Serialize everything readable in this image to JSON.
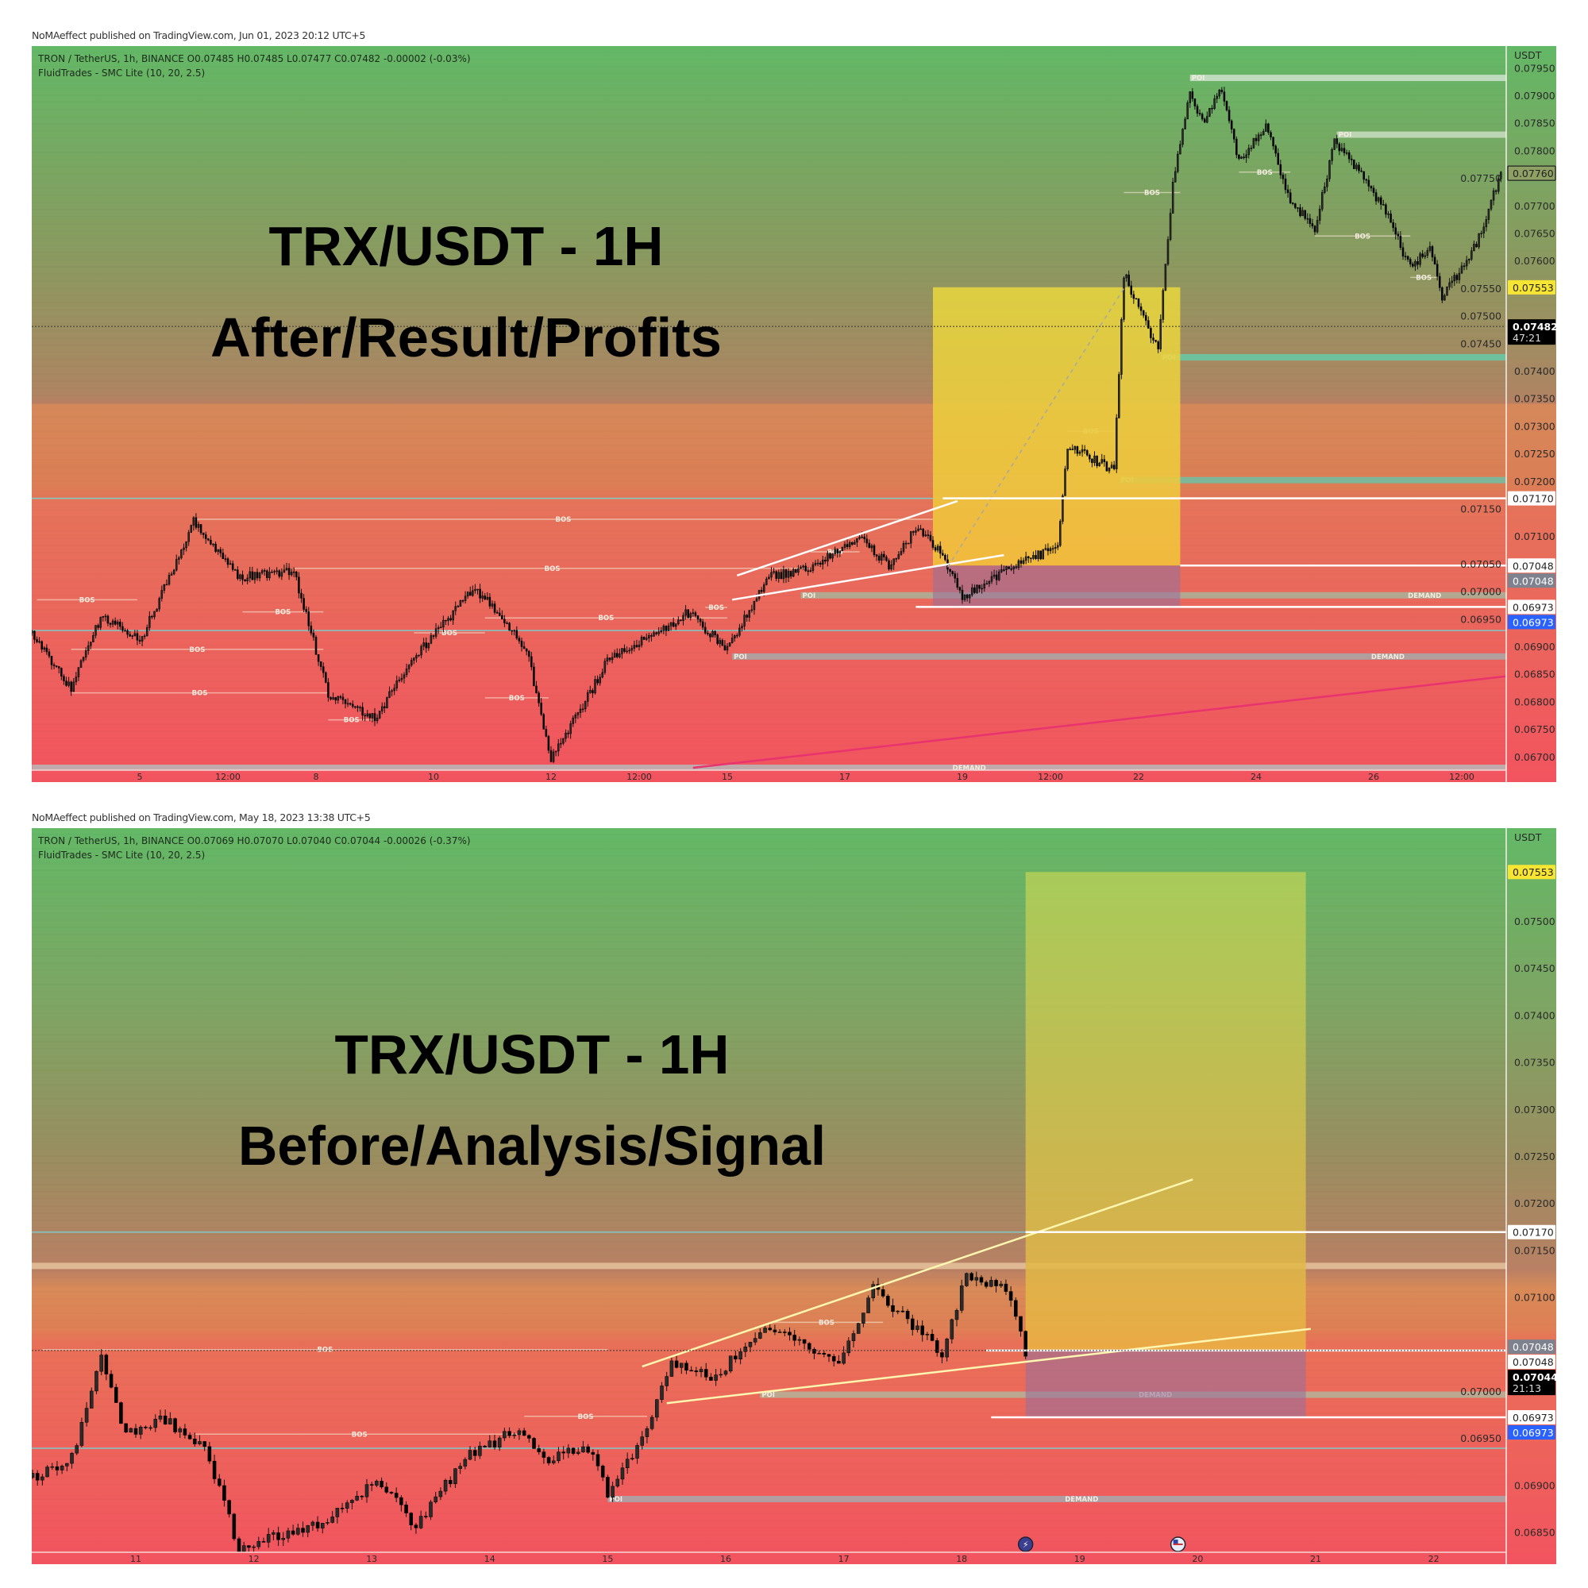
{
  "chart_data": [
    {
      "type": "candlestick",
      "published": "NoMAeffect published on TradingView.com, Jun 01, 2023 20:12 UTC+5",
      "symbol_line": "TRON / TetherUS, 1h, BINANCE  O0.07485  H0.07485  L0.07477  C0.07482  -0.00002 (-0.03%)",
      "indicator_line": "FluidTrades - SMC Lite  (10, 20, 2.5)",
      "title_line1": "TRX/USDT - 1H",
      "title_line2": "After/Result/Profits",
      "axis_unit": "USDT",
      "price_ticks": [
        "0.07950",
        "0.07900",
        "0.07850",
        "0.07800",
        "0.07750",
        "0.07700",
        "0.07650",
        "0.07600",
        "0.07550",
        "0.07500",
        "0.07450",
        "0.07400",
        "0.07350",
        "0.07300",
        "0.07250",
        "0.07200",
        "0.07150",
        "0.07100",
        "0.07050",
        "0.07000",
        "0.06950",
        "0.06900",
        "0.06850",
        "0.06800",
        "0.06750",
        "0.06700"
      ],
      "price_labels": [
        {
          "value": "0.07760",
          "style": "outlined"
        },
        {
          "value": "0.07553",
          "style": "yellow"
        },
        {
          "value": "0.07482",
          "sub": "47:21",
          "style": "black"
        },
        {
          "value": "0.07170",
          "style": "white"
        },
        {
          "value": "0.07048",
          "style": "white"
        },
        {
          "value": "0.07048",
          "style": "grey"
        },
        {
          "value": "0.06973",
          "style": "white"
        },
        {
          "value": "0.06973",
          "style": "blue"
        }
      ],
      "time_ticks": [
        {
          "t": "2023-05-05 00:00",
          "label": "5"
        },
        {
          "t": "2023-05-06 12:00",
          "label": "12:00"
        },
        {
          "t": "2023-05-08 00:00",
          "label": "8"
        },
        {
          "t": "2023-05-10 00:00",
          "label": "10"
        },
        {
          "t": "2023-05-12 00:00",
          "label": "12"
        },
        {
          "t": "2023-05-13 12:00",
          "label": "12:00"
        },
        {
          "t": "2023-05-15 00:00",
          "label": "15"
        },
        {
          "t": "2023-05-17 00:00",
          "label": "17"
        },
        {
          "t": "2023-05-19 00:00",
          "label": "19"
        },
        {
          "t": "2023-05-20 12:00",
          "label": "12:00"
        },
        {
          "t": "2023-05-22 00:00",
          "label": "22"
        },
        {
          "t": "2023-05-24 00:00",
          "label": "24"
        },
        {
          "t": "2023-05-26 00:00",
          "label": "26"
        },
        {
          "t": "2023-05-27 12:00",
          "label": "12:00"
        }
      ],
      "price_path": [
        {
          "t": "2023-05-03 04:00",
          "p": 0.06926
        },
        {
          "t": "2023-05-03 20:00",
          "p": 0.06825
        },
        {
          "t": "2023-05-04 08:00",
          "p": 0.06953
        },
        {
          "t": "2023-05-05 01:00",
          "p": 0.06917
        },
        {
          "t": "2023-05-05 22:00",
          "p": 0.07128
        },
        {
          "t": "2023-05-06 16:00",
          "p": 0.07027
        },
        {
          "t": "2023-05-07 15:00",
          "p": 0.07036
        },
        {
          "t": "2023-05-08 05:00",
          "p": 0.06815
        },
        {
          "t": "2023-05-09 00:00",
          "p": 0.0677
        },
        {
          "t": "2023-05-09 16:00",
          "p": 0.0688
        },
        {
          "t": "2023-05-10 17:00",
          "p": 0.07008
        },
        {
          "t": "2023-05-11 14:00",
          "p": 0.06898
        },
        {
          "t": "2023-05-12 00:00",
          "p": 0.06696
        },
        {
          "t": "2023-05-12 17:00",
          "p": 0.06825
        },
        {
          "t": "2023-05-12 23:00",
          "p": 0.0688
        },
        {
          "t": "2023-05-13 15:00",
          "p": 0.06917
        },
        {
          "t": "2023-05-14 08:00",
          "p": 0.06962
        },
        {
          "t": "2023-05-15 00:00",
          "p": 0.06898
        },
        {
          "t": "2023-05-15 17:00",
          "p": 0.07027
        },
        {
          "t": "2023-05-16 10:00",
          "p": 0.07045
        },
        {
          "t": "2023-05-17 06:00",
          "p": 0.071
        },
        {
          "t": "2023-05-17 19:00",
          "p": 0.07045
        },
        {
          "t": "2023-05-18 05:00",
          "p": 0.07119
        },
        {
          "t": "2023-05-18 15:00",
          "p": 0.07073
        },
        {
          "t": "2023-05-19 00:00",
          "p": 0.0699
        },
        {
          "t": "2023-05-19 10:00",
          "p": 0.07018
        },
        {
          "t": "2023-05-19 20:00",
          "p": 0.07045
        },
        {
          "t": "2023-05-20 15:00",
          "p": 0.07082
        },
        {
          "t": "2023-05-20 19:00",
          "p": 0.07266
        },
        {
          "t": "2023-05-21 14:00",
          "p": 0.0722
        },
        {
          "t": "2023-05-21 18:00",
          "p": 0.07578
        },
        {
          "t": "2023-05-22 08:00",
          "p": 0.0744
        },
        {
          "t": "2023-05-22 14:00",
          "p": 0.07744
        },
        {
          "t": "2023-05-22 21:00",
          "p": 0.07909
        },
        {
          "t": "2023-05-23 03:00",
          "p": 0.07845
        },
        {
          "t": "2023-05-23 09:00",
          "p": 0.07918
        },
        {
          "t": "2023-05-23 17:00",
          "p": 0.07781
        },
        {
          "t": "2023-05-24 04:00",
          "p": 0.07845
        },
        {
          "t": "2023-05-24 14:00",
          "p": 0.07707
        },
        {
          "t": "2023-05-25 00:00",
          "p": 0.07661
        },
        {
          "t": "2023-05-25 08:00",
          "p": 0.07817
        },
        {
          "t": "2023-05-25 21:00",
          "p": 0.07744
        },
        {
          "t": "2023-05-26 05:00",
          "p": 0.07689
        },
        {
          "t": "2023-05-26 15:00",
          "p": 0.07587
        },
        {
          "t": "2023-05-26 23:00",
          "p": 0.07624
        },
        {
          "t": "2023-05-27 04:00",
          "p": 0.07532
        },
        {
          "t": "2023-05-27 18:00",
          "p": 0.07633
        },
        {
          "t": "2023-05-28 04:00",
          "p": 0.0776
        }
      ],
      "position": {
        "t_start": "2023-05-18 12:00",
        "t_end": "2023-05-22 17:00",
        "target": 0.07553,
        "entry": 0.07048,
        "stop": 0.06973
      },
      "levels": [
        {
          "p": 0.0717,
          "t_start": "2023-05-18 16:00"
        },
        {
          "p": 0.07048,
          "t_start": "2023-05-22 17:00"
        },
        {
          "p": 0.06973,
          "t_start": "2023-05-18 05:00"
        }
      ],
      "trendlines": [
        {
          "kind": "wedge",
          "t1": "2023-05-15 04:00",
          "p1": 0.0703,
          "t2": "2023-05-18 22:00",
          "p2": 0.07165
        },
        {
          "kind": "wedge",
          "t1": "2023-05-15 02:00",
          "p1": 0.06986,
          "t2": "2023-05-19 17:00",
          "p2": 0.07067
        },
        {
          "kind": "dotted",
          "t1": "2023-05-18 18:00",
          "p1": 0.07045,
          "t2": "2023-05-21 18:00",
          "p2": 0.07551
        },
        {
          "kind": "pink",
          "t1": "2023-05-14 10:00",
          "p1": 0.06681,
          "t2": "2023-05-28 06:00",
          "p2": 0.06847
        }
      ],
      "zone_lines": [
        0.0717,
        0.0693
      ],
      "bos": [
        {
          "label": "BOS",
          "t1": "2023-05-03 06:00",
          "t2": "2023-05-04 23:00",
          "p": 0.06986
        },
        {
          "label": "BOS",
          "t1": "2023-05-05 22:00",
          "t2": "2023-05-18 12:00",
          "p": 0.07132
        },
        {
          "label": "BOS",
          "t1": "2023-05-07 15:00",
          "t2": "2023-05-16 10:00",
          "p": 0.07043
        },
        {
          "label": "BOS",
          "t1": "2023-05-06 18:00",
          "t2": "2023-05-08 03:00",
          "p": 0.06964
        },
        {
          "label": "BOS",
          "t1": "2023-05-03 20:00",
          "t2": "2023-05-08 03:00",
          "p": 0.06896
        },
        {
          "label": "BOS",
          "t1": "2023-05-03 20:00",
          "t2": "2023-05-08 05:00",
          "p": 0.06817
        },
        {
          "label": "BOS",
          "t1": "2023-05-08 05:00",
          "t2": "2023-05-09 00:00",
          "p": 0.06768
        },
        {
          "label": "BOS",
          "t1": "2023-05-09 16:00",
          "t2": "2023-05-10 21:00",
          "p": 0.06926
        },
        {
          "label": "BOS",
          "t1": "2023-05-10 21:00",
          "t2": "2023-05-15 00:00",
          "p": 0.06953
        },
        {
          "label": "BOS",
          "t1": "2023-05-10 21:00",
          "t2": "2023-05-11 23:00",
          "p": 0.06808
        },
        {
          "label": "BOS",
          "t1": "2023-05-14 15:00",
          "t2": "2023-05-15 00:00",
          "p": 0.06972
        },
        {
          "label": "BOS",
          "t1": "2023-05-16 10:00",
          "t2": "2023-05-17 06:00",
          "p": 0.07073
        },
        {
          "label": "BOS",
          "t1": "2023-05-20 19:00",
          "t2": "2023-05-21 14:00",
          "p": 0.07292
        },
        {
          "label": "BOS",
          "t1": "2023-05-21 18:00",
          "t2": "2023-05-22 17:00",
          "p": 0.07725
        },
        {
          "label": "BOS",
          "t1": "2023-05-23 17:00",
          "t2": "2023-05-24 14:00",
          "p": 0.07762
        },
        {
          "label": "BOS",
          "t1": "2023-05-25 00:00",
          "t2": "2023-05-26 15:00",
          "p": 0.07646
        },
        {
          "label": "BOS",
          "t1": "2023-05-26 15:00",
          "t2": "2023-05-27 02:00",
          "p": 0.07571
        }
      ],
      "zones": [
        {
          "label": "POI",
          "t_start": "2023-05-22 21:00",
          "p": 0.07933,
          "color": "#cfe3cf"
        },
        {
          "label": "POI",
          "t_start": "2023-05-25 09:00",
          "p": 0.0783,
          "color": "#c9dcc0"
        },
        {
          "label": "POI",
          "t_start": "2023-05-22 09:00",
          "p": 0.07426,
          "color": "#66c9a8"
        },
        {
          "label": "POI",
          "t_start": "2023-05-21 16:00",
          "p": 0.07203,
          "color": "#6fc0a6"
        },
        {
          "label": "POI",
          "t_start": "2023-05-16 06:00",
          "p": 0.06994,
          "color": "#a9b49a",
          "right_label": "DEMAND",
          "t_right": "2023-05-26 14:00"
        },
        {
          "label": "POI",
          "t_start": "2023-05-15 02:00",
          "p": 0.06883,
          "color": "#a9a9a9",
          "right_label": "DEMAND",
          "t_right": "2023-05-25 23:00"
        },
        {
          "label": "",
          "t_start": "2023-05-03 04:00",
          "p": 0.06681,
          "color": "#b8b8b8",
          "right_label": "DEMAND",
          "t_right": "2023-05-18 20:00"
        }
      ],
      "events": []
    },
    {
      "type": "candlestick",
      "published": "NoMAeffect published on TradingView.com, May 18, 2023 13:38 UTC+5",
      "symbol_line": "TRON / TetherUS, 1h, BINANCE  O0.07069  H0.07070  L0.07040  C0.07044  -0.00026 (-0.37%)",
      "indicator_line": "FluidTrades - SMC Lite  (10, 20, 2.5)",
      "title_line1": "TRX/USDT - 1H",
      "title_line2": "Before/Analysis/Signal",
      "axis_unit": "USDT",
      "price_ticks": [
        "0.07500",
        "0.07450",
        "0.07400",
        "0.07350",
        "0.07300",
        "0.07250",
        "0.07200",
        "0.07150",
        "0.07100",
        "0.07000",
        "0.06950",
        "0.06900",
        "0.06850"
      ],
      "price_labels": [
        {
          "value": "0.07553",
          "style": "yellow"
        },
        {
          "value": "0.07170",
          "style": "white"
        },
        {
          "value": "0.07048",
          "style": "grey"
        },
        {
          "value": "0.07048",
          "style": "white"
        },
        {
          "value": "0.07044",
          "sub": "21:13",
          "style": "black"
        },
        {
          "value": "0.06973",
          "style": "white"
        },
        {
          "value": "0.06973",
          "style": "blue"
        }
      ],
      "time_ticks": [
        {
          "t": "2023-05-11 00:00",
          "label": "11"
        },
        {
          "t": "2023-05-12 00:00",
          "label": "12"
        },
        {
          "t": "2023-05-13 00:00",
          "label": "13"
        },
        {
          "t": "2023-05-14 00:00",
          "label": "14"
        },
        {
          "t": "2023-05-15 00:00",
          "label": "15"
        },
        {
          "t": "2023-05-16 00:00",
          "label": "16"
        },
        {
          "t": "2023-05-17 00:00",
          "label": "17"
        },
        {
          "t": "2023-05-18 00:00",
          "label": "18"
        },
        {
          "t": "2023-05-19 00:00",
          "label": "19"
        },
        {
          "t": "2023-05-20 00:00",
          "label": "20"
        },
        {
          "t": "2023-05-21 00:00",
          "label": "21"
        },
        {
          "t": "2023-05-22 00:00",
          "label": "22"
        }
      ],
      "price_path": [
        {
          "t": "2023-05-10 03:00",
          "p": 0.06909
        },
        {
          "t": "2023-05-10 11:00",
          "p": 0.0693
        },
        {
          "t": "2023-05-10 17:00",
          "p": 0.07038
        },
        {
          "t": "2023-05-10 22:00",
          "p": 0.06952
        },
        {
          "t": "2023-05-11 05:00",
          "p": 0.06973
        },
        {
          "t": "2023-05-11 14:00",
          "p": 0.06941
        },
        {
          "t": "2023-05-11 21:00",
          "p": 0.06833
        },
        {
          "t": "2023-05-12 16:00",
          "p": 0.06866
        },
        {
          "t": "2023-05-13 01:00",
          "p": 0.06909
        },
        {
          "t": "2023-05-13 09:00",
          "p": 0.06855
        },
        {
          "t": "2023-05-13 19:00",
          "p": 0.0693
        },
        {
          "t": "2023-05-14 06:00",
          "p": 0.06962
        },
        {
          "t": "2023-05-14 12:00",
          "p": 0.0693
        },
        {
          "t": "2023-05-14 20:00",
          "p": 0.06941
        },
        {
          "t": "2023-05-15 00:00",
          "p": 0.06892
        },
        {
          "t": "2023-05-15 08:00",
          "p": 0.06962
        },
        {
          "t": "2023-05-15 13:00",
          "p": 0.07027
        },
        {
          "t": "2023-05-15 21:00",
          "p": 0.07016
        },
        {
          "t": "2023-05-16 10:00",
          "p": 0.0707
        },
        {
          "t": "2023-05-16 17:00",
          "p": 0.07048
        },
        {
          "t": "2023-05-16 23:00",
          "p": 0.07027
        },
        {
          "t": "2023-05-17 06:00",
          "p": 0.07113
        },
        {
          "t": "2023-05-17 14:00",
          "p": 0.0707
        },
        {
          "t": "2023-05-17 20:00",
          "p": 0.07043
        },
        {
          "t": "2023-05-18 01:00",
          "p": 0.07124
        },
        {
          "t": "2023-05-18 07:00",
          "p": 0.07113
        },
        {
          "t": "2023-05-18 10:00",
          "p": 0.07102
        },
        {
          "t": "2023-05-18 13:00",
          "p": 0.07044
        }
      ],
      "position": {
        "t_start": "2023-05-18 13:00",
        "t_end": "2023-05-20 22:00",
        "target": 0.07553,
        "entry": 0.07044,
        "stop": 0.06973
      },
      "levels": [
        {
          "p": 0.0717,
          "t_start": "2023-05-18 13:00"
        },
        {
          "p": 0.07044,
          "t_start": "2023-05-18 05:00"
        },
        {
          "p": 0.06973,
          "t_start": "2023-05-18 06:00"
        }
      ],
      "trendlines": [
        {
          "kind": "wedge",
          "t1": "2023-05-15 07:00",
          "p1": 0.07027,
          "t2": "2023-05-19 23:00",
          "p2": 0.07226
        },
        {
          "kind": "wedge",
          "t1": "2023-05-15 12:00",
          "p1": 0.06988,
          "t2": "2023-05-20 23:00",
          "p2": 0.07067
        }
      ],
      "zone_lines": [
        0.0717,
        0.0694
      ],
      "light_band": 0.07134,
      "bos": [
        {
          "label": "BOS",
          "t1": "2023-05-10 05:00",
          "t2": "2023-05-15 00:00",
          "p": 0.07045
        },
        {
          "label": "BOS",
          "t1": "2023-05-11 12:00",
          "t2": "2023-05-14 07:00",
          "p": 0.06955
        },
        {
          "label": "BOS",
          "t1": "2023-05-14 07:00",
          "t2": "2023-05-15 08:00",
          "p": 0.06974
        },
        {
          "label": "BOS",
          "t1": "2023-05-16 09:00",
          "t2": "2023-05-17 08:00",
          "p": 0.07074
        }
      ],
      "zones": [
        {
          "label": "POI",
          "t_start": "2023-05-16 07:00",
          "p": 0.06997,
          "color": "#b4b49a",
          "right_label": "DEMAND",
          "t_right": "2023-05-19 12:00"
        },
        {
          "label": "POI",
          "t_start": "2023-05-15 00:00",
          "p": 0.06886,
          "color": "#a7a7ad",
          "right_label": "DEMAND",
          "t_right": "2023-05-18 21:00"
        }
      ],
      "events": [
        {
          "t": "2023-05-18 13:00",
          "icon": "lightning-icon",
          "color": "#3b3f8f"
        },
        {
          "t": "2023-05-19 20:00",
          "icon": "us-flag-icon",
          "color": "#e8eef8"
        }
      ]
    }
  ]
}
